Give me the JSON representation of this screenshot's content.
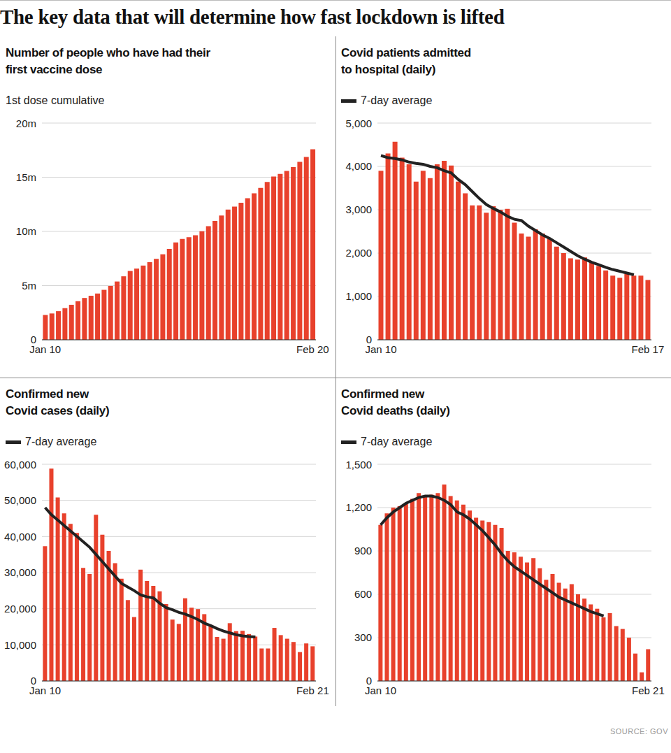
{
  "title": "The key data that will determine how fast lockdown is lifted",
  "source": "SOURCE: GOV",
  "chart_data": [
    {
      "type": "bar",
      "title": "Number of people who have had their\nfirst vaccine dose",
      "subtitle": "1st dose cumulative",
      "categories": [
        "Jan 10",
        null,
        null,
        null,
        null,
        null,
        null,
        null,
        null,
        null,
        null,
        null,
        null,
        null,
        null,
        null,
        null,
        null,
        null,
        null,
        null,
        null,
        null,
        null,
        null,
        null,
        null,
        null,
        null,
        null,
        null,
        null,
        null,
        null,
        null,
        null,
        null,
        null,
        null,
        null,
        null,
        "Feb 20"
      ],
      "series": [
        {
          "type": "bar",
          "color": "#e8412c",
          "values": [
            2.29,
            2.43,
            2.64,
            2.92,
            3.23,
            3.56,
            3.86,
            4.06,
            4.27,
            4.61,
            4.97,
            5.38,
            5.86,
            6.35,
            6.57,
            6.85,
            7.16,
            7.47,
            7.89,
            8.38,
            8.98,
            9.3,
            9.47,
            9.65,
            10.02,
            10.49,
            10.97,
            11.46,
            12.01,
            12.29,
            12.65,
            13.06,
            13.51,
            14.01,
            14.56,
            15.06,
            15.3,
            15.58,
            15.94,
            16.42,
            16.87,
            17.58
          ]
        }
      ],
      "ylim": [
        0,
        20
      ],
      "yticks": [
        0,
        {
          "value": 5,
          "label": "5m"
        },
        {
          "value": 10,
          "label": "10m"
        },
        {
          "value": 15,
          "label": "15m"
        },
        {
          "value": 20,
          "label": "20m"
        }
      ],
      "grid": true
    },
    {
      "type": "bar",
      "title": "Covid patients admitted\nto hospital (daily)",
      "legend": "top-left",
      "categories": [
        "Jan 10",
        null,
        null,
        null,
        null,
        null,
        null,
        null,
        null,
        null,
        null,
        null,
        null,
        null,
        null,
        null,
        null,
        null,
        null,
        null,
        null,
        null,
        null,
        null,
        null,
        null,
        null,
        null,
        null,
        null,
        null,
        null,
        null,
        null,
        null,
        null,
        null,
        null,
        "Feb 17"
      ],
      "series": [
        {
          "type": "bar",
          "color": "#e8412c",
          "values": [
            3900,
            4300,
            4570,
            4200,
            4050,
            3650,
            3900,
            3730,
            4050,
            4130,
            4020,
            3650,
            3380,
            3100,
            3100,
            2930,
            3080,
            3000,
            3020,
            2700,
            2450,
            2380,
            2550,
            2450,
            2330,
            2150,
            2000,
            1880,
            1850,
            1900,
            1780,
            1700,
            1600,
            1480,
            1430,
            1520,
            1480,
            1480,
            1380
          ]
        },
        {
          "type": "line",
          "name": "7-day average",
          "color": "#222222",
          "values": [
            4250,
            4200,
            4180,
            4150,
            4100,
            4070,
            4050,
            4000,
            3970,
            3900,
            3850,
            3700,
            3580,
            3420,
            3260,
            3120,
            3030,
            2950,
            2850,
            2780,
            2750,
            2620,
            2520,
            2420,
            2340,
            2240,
            2140,
            2040,
            1940,
            1860,
            1790,
            1730,
            1670,
            1620,
            1580,
            1540,
            1500,
            null,
            null
          ]
        }
      ],
      "ylim": [
        0,
        5000
      ],
      "yticks": [
        0,
        {
          "value": 1000,
          "label": "1,000"
        },
        {
          "value": 2000,
          "label": "2,000"
        },
        {
          "value": 3000,
          "label": "3,000"
        },
        {
          "value": 4000,
          "label": "4,000"
        },
        {
          "value": 5000,
          "label": "5,000"
        }
      ],
      "grid": true
    },
    {
      "type": "bar",
      "title": "Confirmed new\nCovid cases (daily)",
      "legend": "top-left",
      "categories": [
        "Jan 10",
        null,
        null,
        null,
        null,
        null,
        null,
        null,
        null,
        null,
        null,
        null,
        null,
        null,
        null,
        null,
        null,
        null,
        null,
        null,
        null,
        null,
        null,
        null,
        null,
        null,
        null,
        null,
        null,
        null,
        null,
        null,
        null,
        null,
        null,
        null,
        null,
        null,
        null,
        null,
        null,
        null,
        "Feb 21"
      ],
      "series": [
        {
          "type": "bar",
          "color": "#e8412c",
          "values": [
            37300,
            58800,
            50800,
            46400,
            43500,
            41000,
            31300,
            29600,
            46000,
            40500,
            36000,
            32600,
            28300,
            22400,
            17700,
            30800,
            27700,
            26300,
            24800,
            21300,
            17000,
            15800,
            22900,
            20300,
            19900,
            18500,
            15500,
            12200,
            11700,
            16000,
            13800,
            13900,
            13000,
            12300,
            9000,
            9000,
            14700,
            12700,
            11700,
            10800,
            8000,
            10400,
            9600
          ]
        },
        {
          "type": "line",
          "name": "7-day average",
          "color": "#222222",
          "values": [
            48000,
            46000,
            44500,
            43000,
            41500,
            40000,
            38500,
            37000,
            35000,
            33000,
            31000,
            29000,
            27000,
            26000,
            25000,
            23800,
            23300,
            23000,
            21500,
            20300,
            19700,
            19000,
            18500,
            17800,
            17000,
            16000,
            15300,
            14500,
            13800,
            13300,
            12800,
            12500,
            12300,
            12200,
            null,
            null,
            null,
            null,
            null,
            null,
            null,
            null,
            null
          ]
        }
      ],
      "ylim": [
        0,
        60000
      ],
      "yticks": [
        0,
        {
          "value": 10000,
          "label": "10,000"
        },
        {
          "value": 20000,
          "label": "20,000"
        },
        {
          "value": 30000,
          "label": "30,000"
        },
        {
          "value": 40000,
          "label": "40,000"
        },
        {
          "value": 50000,
          "label": "50,000"
        },
        {
          "value": 60000,
          "label": "60,000"
        }
      ],
      "grid": true
    },
    {
      "type": "bar",
      "title": "Confirmed new\nCovid deaths (daily)",
      "legend": "top-left",
      "categories": [
        "Jan 10",
        null,
        null,
        null,
        null,
        null,
        null,
        null,
        null,
        null,
        null,
        null,
        null,
        null,
        null,
        null,
        null,
        null,
        null,
        null,
        null,
        null,
        null,
        null,
        null,
        null,
        null,
        null,
        null,
        null,
        null,
        null,
        null,
        null,
        null,
        null,
        null,
        null,
        null,
        null,
        null,
        null,
        "Feb 21"
      ],
      "series": [
        {
          "type": "bar",
          "color": "#e8412c",
          "values": [
            1080,
            1160,
            1200,
            1210,
            1230,
            1260,
            1300,
            1280,
            1290,
            1300,
            1360,
            1280,
            1250,
            1220,
            1180,
            1130,
            1110,
            1100,
            1080,
            1060,
            900,
            890,
            860,
            820,
            850,
            780,
            700,
            740,
            680,
            640,
            670,
            600,
            570,
            530,
            500,
            440,
            470,
            380,
            360,
            300,
            190,
            60,
            220
          ]
        },
        {
          "type": "line",
          "name": "7-day average",
          "color": "#222222",
          "values": [
            1080,
            1130,
            1170,
            1200,
            1230,
            1250,
            1270,
            1280,
            1280,
            1270,
            1250,
            1220,
            1170,
            1150,
            1120,
            1080,
            1040,
            990,
            940,
            880,
            830,
            790,
            760,
            730,
            700,
            670,
            640,
            610,
            580,
            560,
            540,
            520,
            500,
            480,
            465,
            450,
            null,
            null,
            null,
            null,
            null,
            null,
            null
          ]
        }
      ],
      "ylim": [
        0,
        1500
      ],
      "yticks": [
        0,
        300,
        600,
        900,
        {
          "value": 1200,
          "label": "1,200"
        },
        {
          "value": 1500,
          "label": "1,500"
        }
      ],
      "grid": true
    }
  ]
}
